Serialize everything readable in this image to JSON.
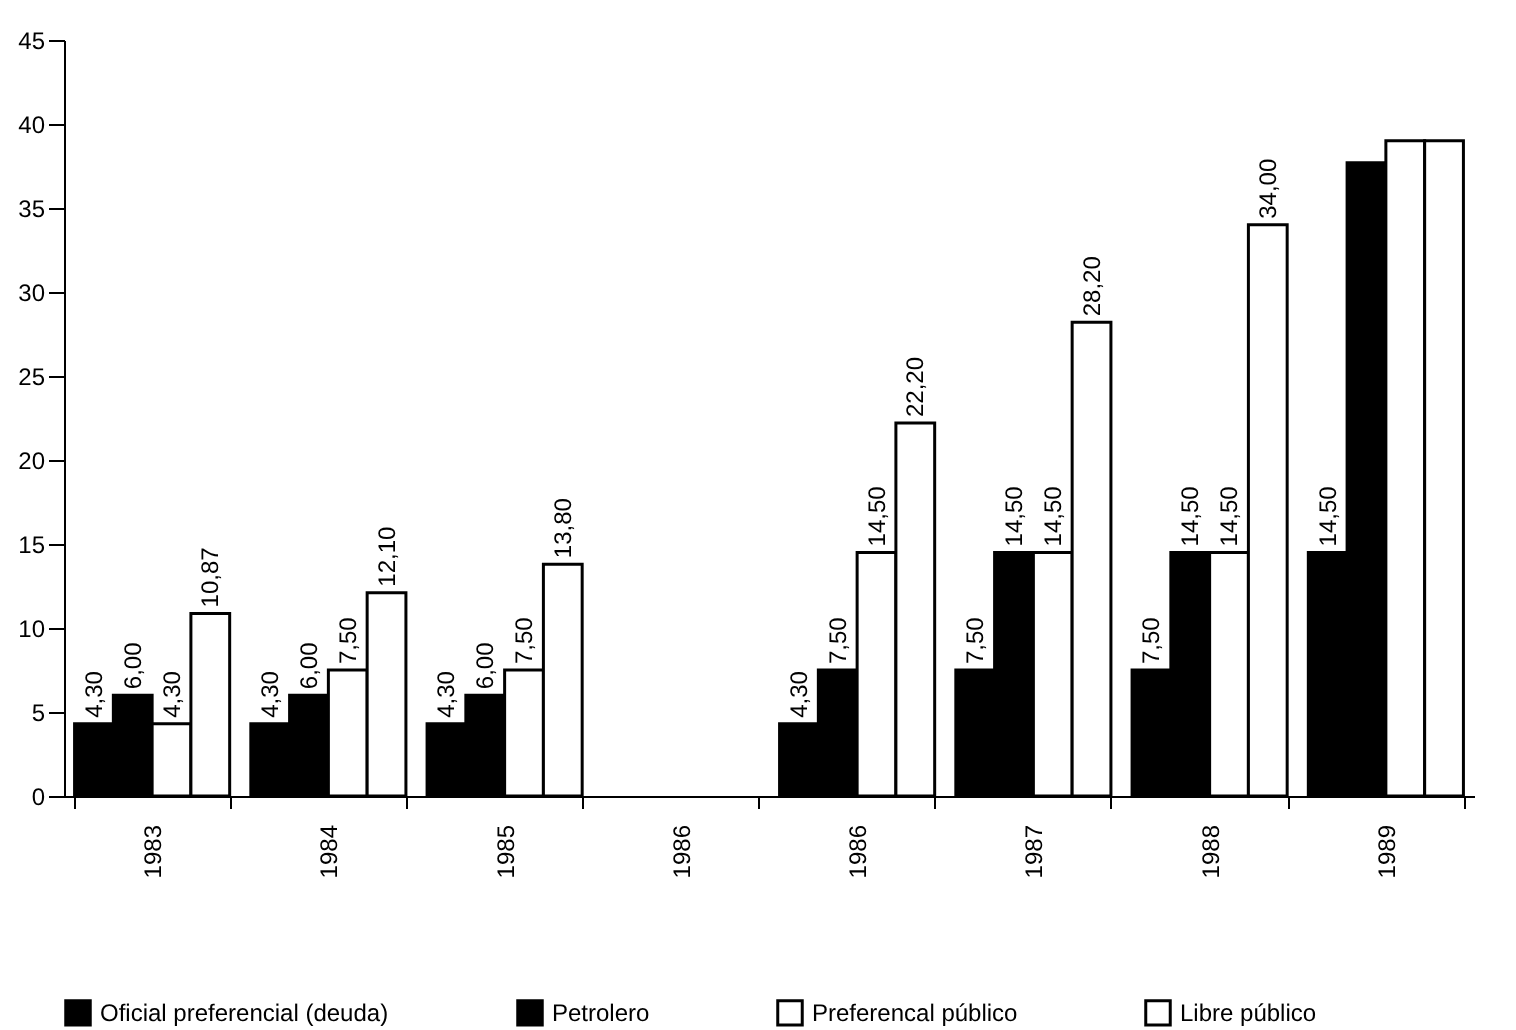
{
  "chart_data": {
    "type": "bar",
    "categories": [
      "1983",
      "1984",
      "1985",
      "1986",
      "1986",
      "1987",
      "1988",
      "1989"
    ],
    "series": [
      {
        "name": "Oficial preferencial (deuda)",
        "color": "#000000",
        "values": [
          4.3,
          4.3,
          4.3,
          null,
          4.3,
          7.5,
          7.5,
          14.5
        ],
        "value_labels": [
          "4,30",
          "4,30",
          "4,30",
          null,
          "4,30",
          "7,50",
          "7,50",
          "14,50"
        ]
      },
      {
        "name": "Petrolero",
        "color": "#000000",
        "values": [
          6.0,
          6.0,
          6.0,
          null,
          7.5,
          14.5,
          14.5,
          37.7
        ],
        "value_labels": [
          "6,00",
          "6,00",
          "6,00",
          null,
          "7,50",
          "14,50",
          "14,50",
          null
        ]
      },
      {
        "name": "Preferencal público",
        "color": "#ffffff",
        "values": [
          4.3,
          7.5,
          7.5,
          null,
          14.5,
          14.5,
          14.5,
          39.0
        ],
        "value_labels": [
          "4,30",
          "7,50",
          "7,50",
          null,
          "14,50",
          "14,50",
          "14,50",
          null
        ]
      },
      {
        "name": "Libre público",
        "color": "#ffffff",
        "values": [
          10.87,
          12.1,
          13.8,
          null,
          22.2,
          28.2,
          34.0,
          39.0
        ],
        "value_labels": [
          "10,87",
          "12,10",
          "13,80",
          null,
          "22,20",
          "28,20",
          "34,00",
          null
        ]
      }
    ],
    "ylim": [
      0,
      45
    ],
    "yticks": [
      0,
      5,
      10,
      15,
      20,
      25,
      30,
      35,
      40,
      45
    ],
    "grid": false,
    "legend": "bottom"
  }
}
